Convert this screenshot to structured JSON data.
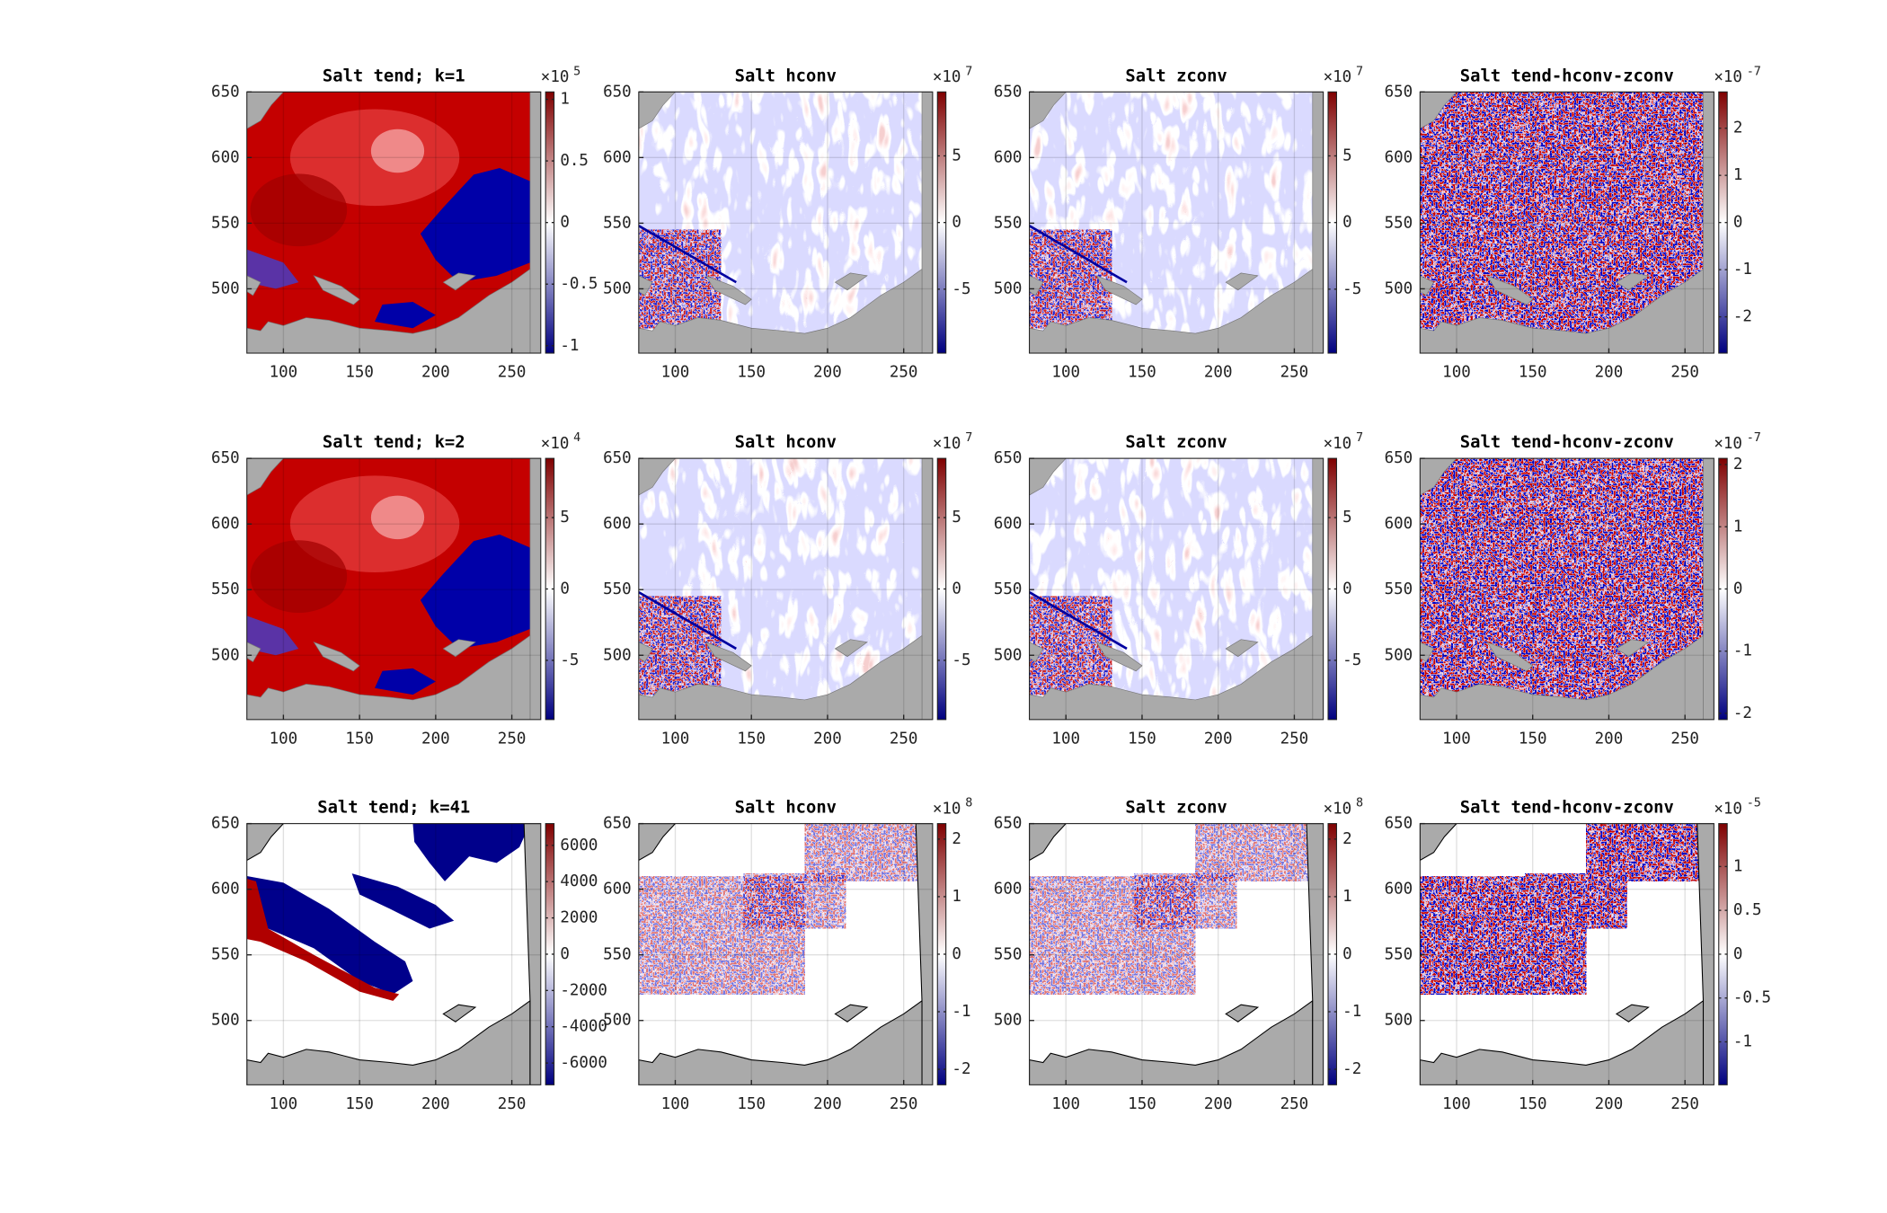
{
  "chart_data": [
    {
      "type": "map",
      "title": "Salt tend; k=1",
      "xlim": [
        76,
        269
      ],
      "ylim": [
        451,
        650
      ],
      "xticks": [
        100,
        150,
        200,
        250
      ],
      "yticks": [
        500,
        550,
        600,
        650
      ],
      "grid": true,
      "clim": [
        -1.06,
        1.06
      ],
      "cticks": [
        -1,
        -0.5,
        0,
        0.5,
        1
      ],
      "colorbar_multiplier": "×10",
      "colorbar_exponent": 5,
      "colormap": [
        "#00007f",
        "#ffffff",
        "#7f0000"
      ]
    },
    {
      "type": "map",
      "title": "Salt hconv",
      "xlim": [
        76,
        269
      ],
      "ylim": [
        451,
        650
      ],
      "xticks": [
        100,
        150,
        200,
        250
      ],
      "yticks": [
        500,
        550,
        600,
        650
      ],
      "grid": true,
      "clim": [
        -9.8,
        9.8
      ],
      "cticks": [
        -5,
        0,
        5
      ],
      "colorbar_multiplier": "×10",
      "colorbar_exponent": 7,
      "colormap": [
        "#00007f",
        "#ffffff",
        "#7f0000"
      ]
    },
    {
      "type": "map",
      "title": "Salt zconv",
      "xlim": [
        76,
        269
      ],
      "ylim": [
        451,
        650
      ],
      "xticks": [
        100,
        150,
        200,
        250
      ],
      "yticks": [
        500,
        550,
        600,
        650
      ],
      "grid": true,
      "clim": [
        -9.8,
        9.8
      ],
      "cticks": [
        -5,
        0,
        5
      ],
      "colorbar_multiplier": "×10",
      "colorbar_exponent": 7,
      "colormap": [
        "#00007f",
        "#ffffff",
        "#7f0000"
      ]
    },
    {
      "type": "map",
      "title": "Salt tend-hconv-zconv",
      "xlim": [
        76,
        269
      ],
      "ylim": [
        451,
        650
      ],
      "xticks": [
        100,
        150,
        200,
        250
      ],
      "yticks": [
        500,
        550,
        600,
        650
      ],
      "grid": true,
      "clim": [
        -2.77,
        2.77
      ],
      "cticks": [
        -2,
        -1,
        0,
        1,
        2
      ],
      "colorbar_multiplier": "×10",
      "colorbar_exponent": -7,
      "colormap": [
        "#00007f",
        "#ffffff",
        "#7f0000"
      ]
    },
    {
      "type": "map",
      "title": "Salt tend; k=2",
      "xlim": [
        76,
        269
      ],
      "ylim": [
        451,
        650
      ],
      "xticks": [
        100,
        150,
        200,
        250
      ],
      "yticks": [
        500,
        550,
        600,
        650
      ],
      "grid": true,
      "clim": [
        -9.15,
        9.15
      ],
      "cticks": [
        -5,
        0,
        5
      ],
      "colorbar_multiplier": "×10",
      "colorbar_exponent": 4,
      "colormap": [
        "#00007f",
        "#ffffff",
        "#7f0000"
      ]
    },
    {
      "type": "map",
      "title": "Salt hconv",
      "xlim": [
        76,
        269
      ],
      "ylim": [
        451,
        650
      ],
      "xticks": [
        100,
        150,
        200,
        250
      ],
      "yticks": [
        500,
        550,
        600,
        650
      ],
      "grid": true,
      "clim": [
        -9.15,
        9.15
      ],
      "cticks": [
        -5,
        0,
        5
      ],
      "colorbar_multiplier": "×10",
      "colorbar_exponent": 7,
      "colormap": [
        "#00007f",
        "#ffffff",
        "#7f0000"
      ]
    },
    {
      "type": "map",
      "title": "Salt zconv",
      "xlim": [
        76,
        269
      ],
      "ylim": [
        451,
        650
      ],
      "xticks": [
        100,
        150,
        200,
        250
      ],
      "yticks": [
        500,
        550,
        600,
        650
      ],
      "grid": true,
      "clim": [
        -9.15,
        9.15
      ],
      "cticks": [
        -5,
        0,
        5
      ],
      "colorbar_multiplier": "×10",
      "colorbar_exponent": 7,
      "colormap": [
        "#00007f",
        "#ffffff",
        "#7f0000"
      ]
    },
    {
      "type": "map",
      "title": "Salt tend-hconv-zconv",
      "xlim": [
        76,
        269
      ],
      "ylim": [
        451,
        650
      ],
      "xticks": [
        100,
        150,
        200,
        250
      ],
      "yticks": [
        500,
        550,
        600,
        650
      ],
      "grid": true,
      "clim": [
        -2.1,
        2.1
      ],
      "cticks": [
        -2,
        -1,
        0,
        1,
        2
      ],
      "colorbar_multiplier": "×10",
      "colorbar_exponent": -7,
      "colormap": [
        "#00007f",
        "#ffffff",
        "#7f0000"
      ]
    },
    {
      "type": "map",
      "title": "Salt tend; k=41",
      "xlim": [
        76,
        269
      ],
      "ylim": [
        451,
        650
      ],
      "xticks": [
        100,
        150,
        200,
        250
      ],
      "yticks": [
        500,
        550,
        600,
        650
      ],
      "grid": true,
      "clim": [
        -7200,
        7200
      ],
      "cticks": [
        -6000,
        -4000,
        -2000,
        0,
        2000,
        4000,
        6000
      ],
      "colormap": [
        "#00007f",
        "#ffffff",
        "#7f0000"
      ]
    },
    {
      "type": "map",
      "title": "Salt hconv",
      "xlim": [
        76,
        269
      ],
      "ylim": [
        451,
        650
      ],
      "xticks": [
        100,
        150,
        200,
        250
      ],
      "yticks": [
        500,
        550,
        600,
        650
      ],
      "grid": true,
      "clim": [
        -2.27,
        2.27
      ],
      "cticks": [
        -2,
        -1,
        0,
        1,
        2
      ],
      "colorbar_multiplier": "×10",
      "colorbar_exponent": 8,
      "colormap": [
        "#00007f",
        "#ffffff",
        "#7f0000"
      ]
    },
    {
      "type": "map",
      "title": "Salt zconv",
      "xlim": [
        76,
        269
      ],
      "ylim": [
        451,
        650
      ],
      "xticks": [
        100,
        150,
        200,
        250
      ],
      "yticks": [
        500,
        550,
        600,
        650
      ],
      "grid": true,
      "clim": [
        -2.27,
        2.27
      ],
      "cticks": [
        -2,
        -1,
        0,
        1,
        2
      ],
      "colorbar_multiplier": "×10",
      "colorbar_exponent": 8,
      "colormap": [
        "#00007f",
        "#ffffff",
        "#7f0000"
      ]
    },
    {
      "type": "map",
      "title": "Salt tend-hconv-zconv",
      "xlim": [
        76,
        269
      ],
      "ylim": [
        451,
        650
      ],
      "xticks": [
        100,
        150,
        200,
        250
      ],
      "yticks": [
        500,
        550,
        600,
        650
      ],
      "grid": true,
      "clim": [
        -1.49,
        1.49
      ],
      "cticks": [
        -1,
        -0.5,
        0,
        0.5,
        1
      ],
      "colorbar_multiplier": "×10",
      "colorbar_exponent": -5,
      "colormap": [
        "#00007f",
        "#ffffff",
        "#7f0000"
      ]
    }
  ]
}
